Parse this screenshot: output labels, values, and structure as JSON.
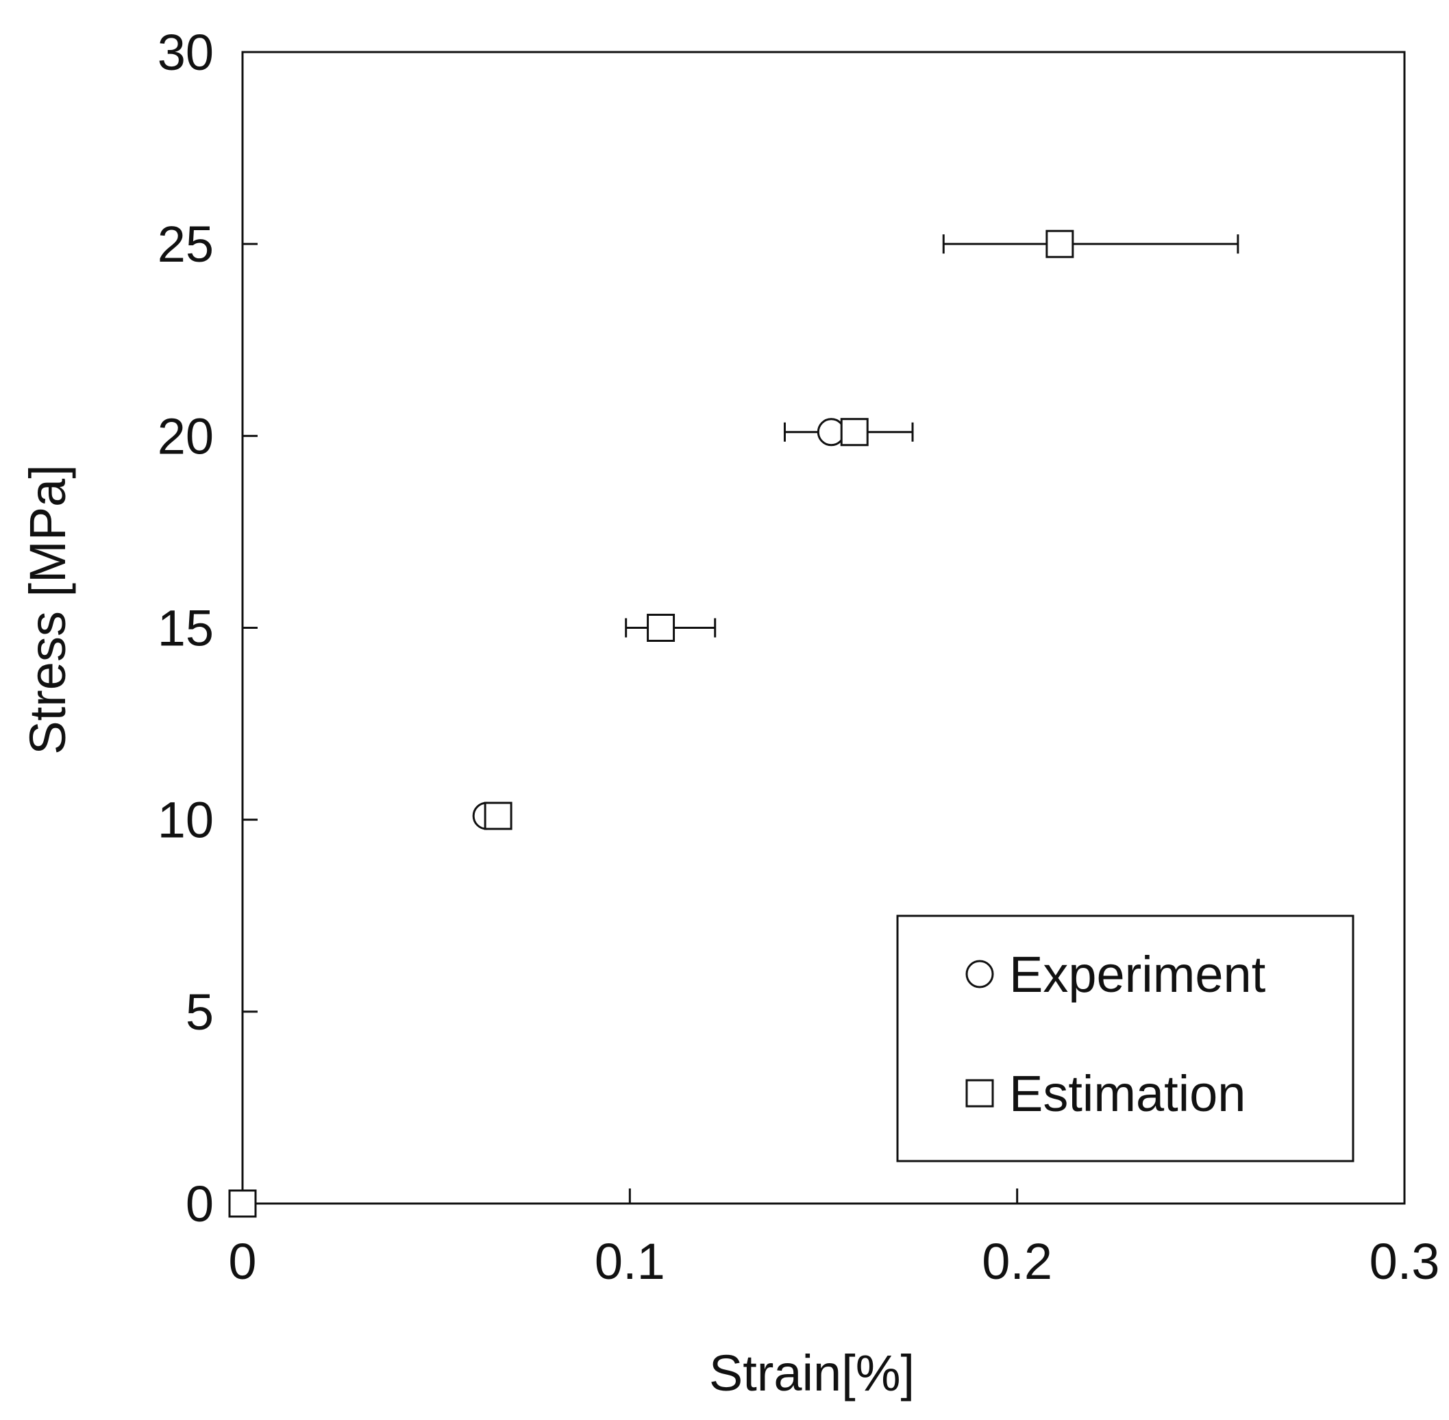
{
  "chart_data": {
    "type": "scatter",
    "title": "",
    "xlabel": "Strain[%]",
    "ylabel": "Stress [MPa]",
    "xlim": [
      0,
      0.3
    ],
    "ylim": [
      0,
      30
    ],
    "xticks": [
      0,
      0.1,
      0.2,
      0.3
    ],
    "xtick_labels": [
      "0",
      "0.1",
      "0.2",
      "0.3"
    ],
    "yticks": [
      0,
      5,
      10,
      15,
      20,
      25,
      30
    ],
    "ytick_labels": [
      "0",
      "5",
      "10",
      "15",
      "20",
      "25",
      "30"
    ],
    "grid": false,
    "legend_position": "bottom-right",
    "series": [
      {
        "name": "Experiment",
        "marker": "circle",
        "points": [
          {
            "x": 0.0,
            "y": 0
          },
          {
            "x": 0.063,
            "y": 10.1
          },
          {
            "x": 0.108,
            "y": 15
          },
          {
            "x": 0.152,
            "y": 20.1
          }
        ]
      },
      {
        "name": "Estimation",
        "marker": "square",
        "points": [
          {
            "x": 0.0,
            "y": 0,
            "xerr": null
          },
          {
            "x": 0.066,
            "y": 10.1,
            "xerr": null
          },
          {
            "x": 0.108,
            "y": 15,
            "xerr": [
              0.099,
              0.122
            ]
          },
          {
            "x": 0.158,
            "y": 20.1,
            "xerr": [
              0.14,
              0.173
            ]
          },
          {
            "x": 0.211,
            "y": 25,
            "xerr": [
              0.181,
              0.257
            ]
          }
        ]
      }
    ]
  }
}
